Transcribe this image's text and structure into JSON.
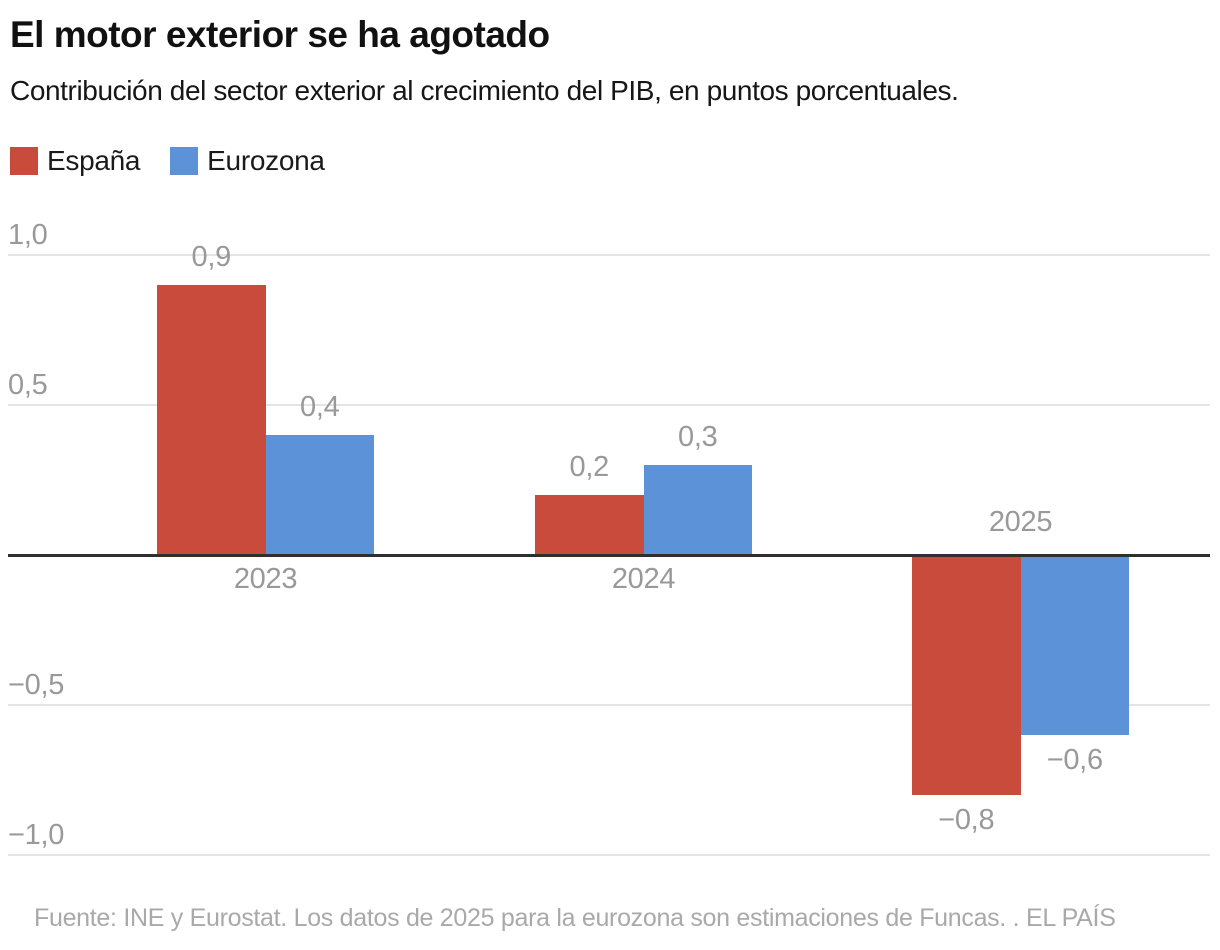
{
  "header": {
    "title": "El motor exterior se ha agotado",
    "subtitle": "Contribución del sector exterior al crecimiento del PIB, en puntos porcentuales."
  },
  "legend": {
    "items": [
      {
        "label": "España",
        "color": "#c94b3b"
      },
      {
        "label": "Eurozona",
        "color": "#5b92d8"
      }
    ]
  },
  "chart_data": {
    "type": "bar",
    "categories": [
      "2023",
      "2024",
      "2025"
    ],
    "series": [
      {
        "name": "España",
        "color": "#c94b3b",
        "values": [
          0.9,
          0.2,
          -0.8
        ],
        "labels": [
          "0,9",
          "0,2",
          "−0,8"
        ]
      },
      {
        "name": "Eurozona",
        "color": "#5b92d8",
        "values": [
          0.4,
          0.3,
          -0.6
        ],
        "labels": [
          "0,4",
          "0,3",
          "−0,6"
        ]
      }
    ],
    "yticks": [
      {
        "value": 1.0,
        "label": "1,0"
      },
      {
        "value": 0.5,
        "label": "0,5"
      },
      {
        "value": -0.5,
        "label": "−0,5"
      },
      {
        "value": -1.0,
        "label": "−1,0"
      }
    ],
    "ylim": [
      -1.0,
      1.0
    ],
    "grid": true,
    "value_labels": true,
    "legend_position": "top-left",
    "baseline_color": "#2f2f2f",
    "gridline_color": "#e4e4e4",
    "label_color": "#999999"
  },
  "footer": {
    "source": "Fuente: INE y Eurostat. Los datos de 2025 para la eurozona son estimaciones de Funcas. . EL PAÍS"
  }
}
